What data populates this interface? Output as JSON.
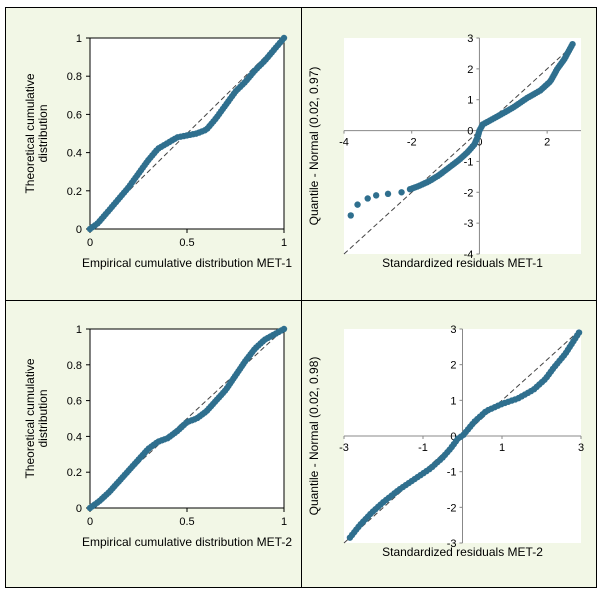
{
  "colors": {
    "panel_bg": "#f2f7e6",
    "point": "#2f6f8e",
    "reference_line": "#444444",
    "plot_area_border": "#000000"
  },
  "chart_data": [
    {
      "id": "pp-met1",
      "type": "scatter",
      "subtype": "P-P plot",
      "title": "",
      "xlabel": "Empirical cumulative distribution MET-1",
      "ylabel_lines": [
        "Theoretical cumulative",
        "distribution"
      ],
      "xlim": [
        0,
        1
      ],
      "ylim": [
        0,
        1
      ],
      "xticks": [
        0,
        0.5,
        1
      ],
      "yticks": [
        0,
        0.2,
        0.4,
        0.6,
        0.8,
        1
      ],
      "xtick_labels": [
        "0",
        "0.5",
        "1"
      ],
      "ytick_labels": [
        "0",
        "0.2",
        "0.4",
        "0.6",
        "0.8",
        "1"
      ],
      "axes_style": "box",
      "grid": false,
      "reference_line": [
        [
          0,
          0
        ],
        [
          1,
          1
        ]
      ],
      "curve": [
        [
          0.0,
          0.0
        ],
        [
          0.04,
          0.03
        ],
        [
          0.1,
          0.1
        ],
        [
          0.15,
          0.16
        ],
        [
          0.2,
          0.22
        ],
        [
          0.25,
          0.29
        ],
        [
          0.3,
          0.36
        ],
        [
          0.35,
          0.42
        ],
        [
          0.4,
          0.45
        ],
        [
          0.45,
          0.48
        ],
        [
          0.5,
          0.49
        ],
        [
          0.55,
          0.5
        ],
        [
          0.6,
          0.52
        ],
        [
          0.65,
          0.58
        ],
        [
          0.7,
          0.65
        ],
        [
          0.75,
          0.72
        ],
        [
          0.8,
          0.77
        ],
        [
          0.85,
          0.83
        ],
        [
          0.9,
          0.88
        ],
        [
          0.95,
          0.94
        ],
        [
          1.0,
          1.0
        ]
      ]
    },
    {
      "id": "qq-met1",
      "type": "scatter",
      "subtype": "Q-Q plot",
      "title": "",
      "xlabel": "Standardized residuals MET-1",
      "ylabel": "Quantile - Normal (0.02, 0.97)",
      "xlim": [
        -4,
        3
      ],
      "ylim": [
        -4,
        3
      ],
      "xticks": [
        -4,
        -2,
        0,
        2
      ],
      "yticks": [
        -4,
        -3,
        -2,
        -1,
        0,
        1,
        2,
        3
      ],
      "xtick_labels": [
        "-4",
        "-2",
        "0",
        "2"
      ],
      "ytick_labels": [
        "-4",
        "-3",
        "-2",
        "-1",
        "0",
        "1",
        "2",
        "3"
      ],
      "axes_style": "centered",
      "grid": false,
      "reference_line": [
        [
          -4,
          -4
        ],
        [
          2.8,
          2.8
        ]
      ],
      "extra_points": [
        [
          -3.8,
          -2.75
        ],
        [
          -3.6,
          -2.4
        ],
        [
          -3.3,
          -2.2
        ],
        [
          -3.05,
          -2.1
        ],
        [
          -2.7,
          -2.05
        ],
        [
          -2.3,
          -2.0
        ]
      ],
      "curve": [
        [
          -2.05,
          -1.9
        ],
        [
          -1.8,
          -1.8
        ],
        [
          -1.5,
          -1.65
        ],
        [
          -1.2,
          -1.45
        ],
        [
          -0.9,
          -1.2
        ],
        [
          -0.6,
          -0.95
        ],
        [
          -0.35,
          -0.7
        ],
        [
          -0.15,
          -0.45
        ],
        [
          -0.05,
          -0.2
        ],
        [
          0.0,
          0.0
        ],
        [
          0.1,
          0.2
        ],
        [
          0.3,
          0.32
        ],
        [
          0.6,
          0.5
        ],
        [
          1.0,
          0.75
        ],
        [
          1.4,
          1.05
        ],
        [
          1.8,
          1.3
        ],
        [
          2.1,
          1.6
        ],
        [
          2.3,
          2.0
        ],
        [
          2.5,
          2.3
        ],
        [
          2.75,
          2.8
        ]
      ]
    },
    {
      "id": "pp-met2",
      "type": "scatter",
      "subtype": "P-P plot",
      "title": "",
      "xlabel": "Empirical cumulative distribution MET-2",
      "ylabel_lines": [
        "Theoretical cumulative",
        "distribution"
      ],
      "xlim": [
        0,
        1
      ],
      "ylim": [
        0,
        1
      ],
      "xticks": [
        0,
        0.5,
        1
      ],
      "yticks": [
        0,
        0.2,
        0.4,
        0.6,
        0.8,
        1
      ],
      "xtick_labels": [
        "0",
        "0.5",
        "1"
      ],
      "ytick_labels": [
        "0",
        "0.2",
        "0.4",
        "0.6",
        "0.8",
        "1"
      ],
      "axes_style": "box",
      "grid": false,
      "reference_line": [
        [
          0,
          0
        ],
        [
          1,
          1
        ]
      ],
      "curve": [
        [
          0.0,
          0.0
        ],
        [
          0.05,
          0.04
        ],
        [
          0.1,
          0.09
        ],
        [
          0.15,
          0.15
        ],
        [
          0.2,
          0.21
        ],
        [
          0.25,
          0.27
        ],
        [
          0.3,
          0.33
        ],
        [
          0.35,
          0.37
        ],
        [
          0.4,
          0.39
        ],
        [
          0.45,
          0.43
        ],
        [
          0.5,
          0.48
        ],
        [
          0.55,
          0.5
        ],
        [
          0.6,
          0.54
        ],
        [
          0.65,
          0.6
        ],
        [
          0.7,
          0.66
        ],
        [
          0.75,
          0.74
        ],
        [
          0.8,
          0.82
        ],
        [
          0.85,
          0.89
        ],
        [
          0.9,
          0.94
        ],
        [
          0.95,
          0.97
        ],
        [
          1.0,
          1.0
        ]
      ]
    },
    {
      "id": "qq-met2",
      "type": "scatter",
      "subtype": "Q-Q plot",
      "title": "",
      "xlabel": "Standardized residuals MET-2",
      "ylabel": "Quantile - Normal (0.02, 0.98)",
      "xlim": [
        -3,
        3
      ],
      "ylim": [
        -3,
        3
      ],
      "xticks": [
        -3,
        -1,
        1,
        3
      ],
      "yticks": [
        -3,
        -2,
        -1,
        0,
        1,
        2,
        3
      ],
      "xtick_labels": [
        "-3",
        "-1",
        "1",
        "3"
      ],
      "ytick_labels": [
        "-3",
        "-2",
        "-1",
        "0",
        "1",
        "2",
        "3"
      ],
      "axes_style": "centered",
      "grid": false,
      "reference_line": [
        [
          -3,
          -3
        ],
        [
          3,
          3
        ]
      ],
      "extra_points": [],
      "curve": [
        [
          -2.85,
          -2.85
        ],
        [
          -2.6,
          -2.5
        ],
        [
          -2.3,
          -2.15
        ],
        [
          -2.0,
          -1.85
        ],
        [
          -1.6,
          -1.5
        ],
        [
          -1.2,
          -1.2
        ],
        [
          -0.8,
          -0.9
        ],
        [
          -0.5,
          -0.6
        ],
        [
          -0.3,
          -0.35
        ],
        [
          -0.1,
          -0.05
        ],
        [
          0.0,
          0.0
        ],
        [
          0.3,
          0.4
        ],
        [
          0.6,
          0.7
        ],
        [
          1.0,
          0.9
        ],
        [
          1.4,
          1.05
        ],
        [
          1.8,
          1.3
        ],
        [
          2.1,
          1.6
        ],
        [
          2.3,
          1.9
        ],
        [
          2.6,
          2.3
        ],
        [
          2.95,
          2.9
        ]
      ]
    }
  ]
}
